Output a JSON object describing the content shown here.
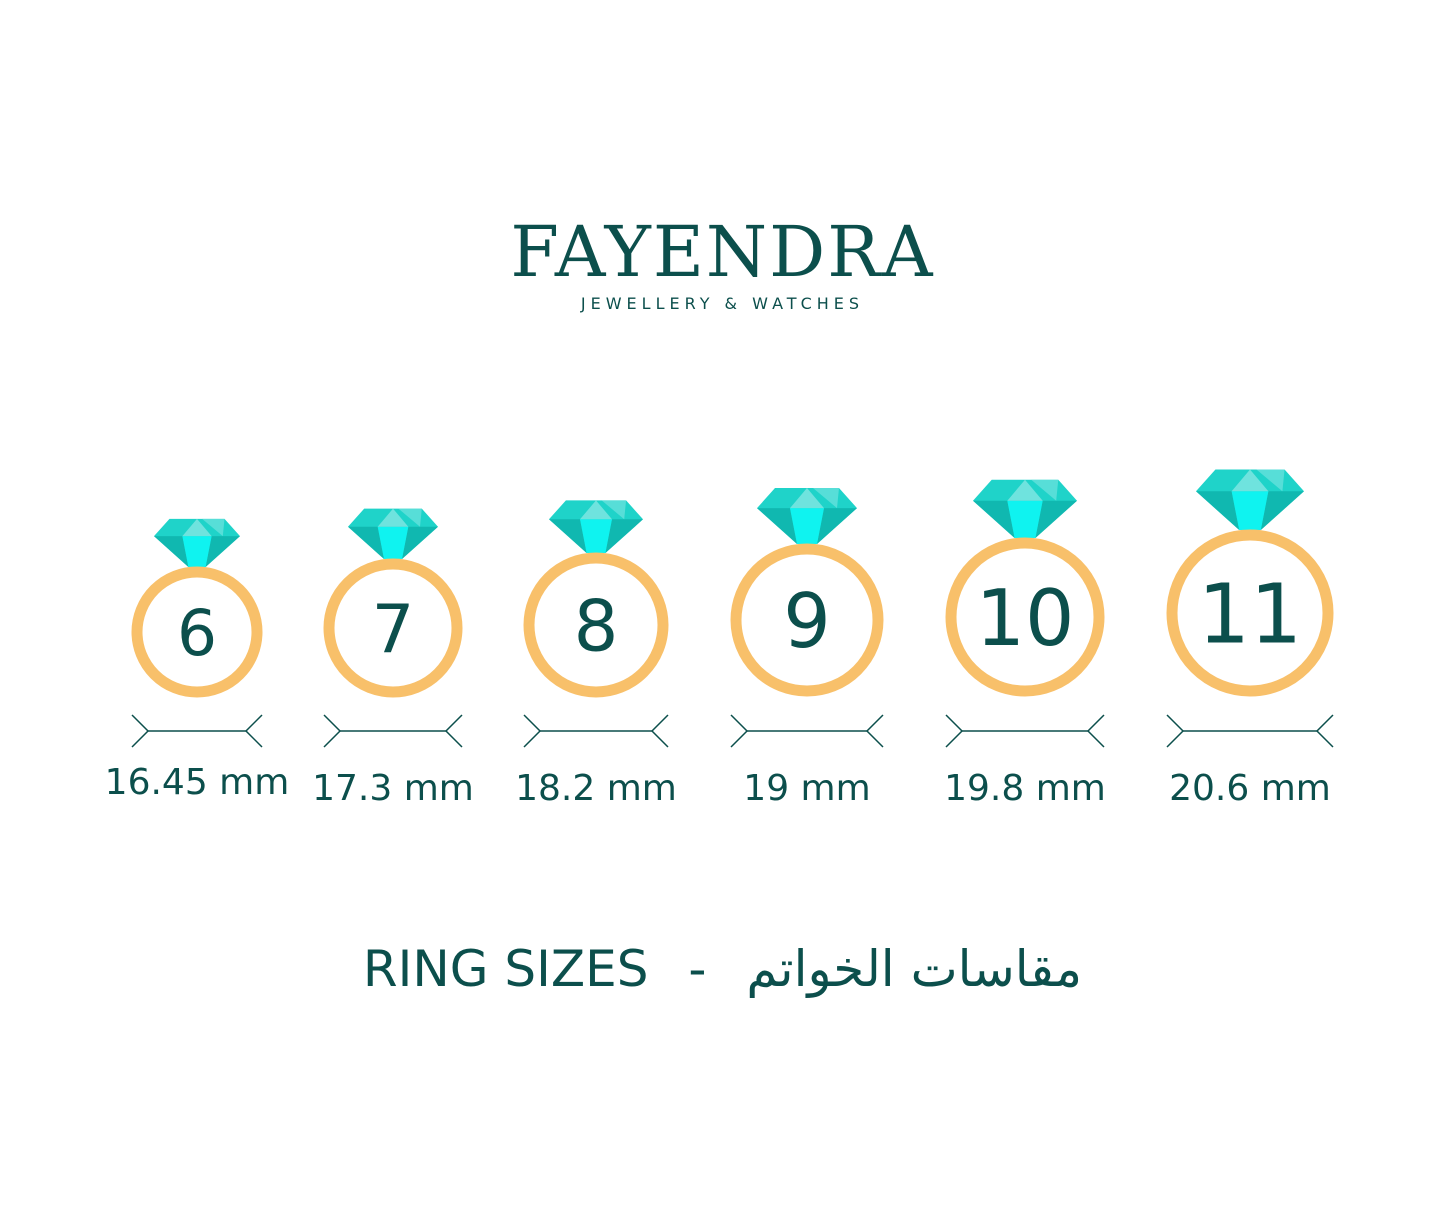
{
  "brand": {
    "name": "FAYENDRA",
    "tagline": "JEWELLERY & WATCHES"
  },
  "colors": {
    "text": "#0c4f4c",
    "ring": "#f8c06a",
    "gem_light": "#6fe3de",
    "gem_mid": "#1fd3c9",
    "gem_dark": "#10b8b0",
    "gem_bright": "#0ff3f0"
  },
  "ring_sizes": [
    {
      "size": "6",
      "diameter": "16.45 mm"
    },
    {
      "size": "7",
      "diameter": "17.3 mm"
    },
    {
      "size": "8",
      "diameter": "18.2 mm"
    },
    {
      "size": "9",
      "diameter": "19 mm"
    },
    {
      "size": "10",
      "diameter": "19.8 mm"
    },
    {
      "size": "11",
      "diameter": "20.6 mm"
    }
  ],
  "footer": {
    "english": "RING SIZES",
    "separator": "-",
    "arabic": "مقاسات الخواتم"
  }
}
